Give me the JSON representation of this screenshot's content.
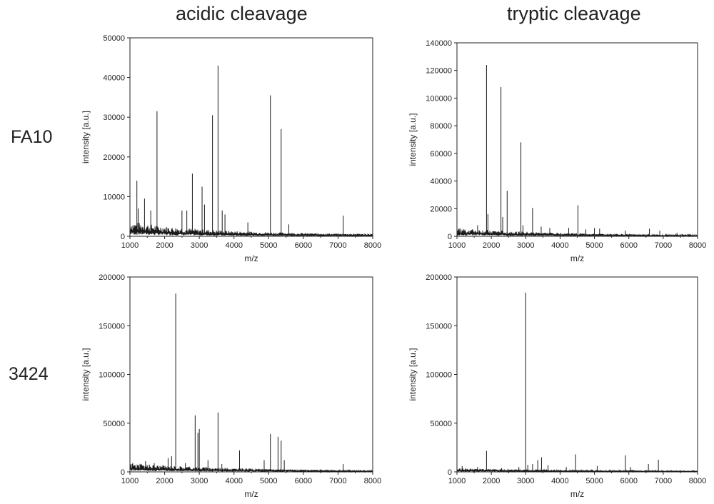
{
  "column_titles": [
    "acidic cleavage",
    "tryptic cleavage"
  ],
  "row_labels": [
    "FA10",
    "3424"
  ],
  "chart_data": [
    {
      "type": "line",
      "id": "fa10-acidic",
      "xlabel": "m/z",
      "ylabel": "intensity [a.u.]",
      "xlim": [
        1000,
        8000
      ],
      "ylim": [
        0,
        50000
      ],
      "xticks": [
        1000,
        2000,
        3000,
        4000,
        5000,
        6000,
        7000,
        8000
      ],
      "yticks": [
        0,
        10000,
        20000,
        30000,
        40000,
        50000
      ],
      "baseline": [
        [
          1000,
          2500
        ],
        [
          2000,
          1700
        ],
        [
          3000,
          1200
        ],
        [
          4000,
          900
        ],
        [
          5000,
          700
        ],
        [
          6000,
          550
        ],
        [
          7000,
          450
        ],
        [
          8000,
          400
        ]
      ],
      "peaks": [
        [
          1200,
          14000
        ],
        [
          1240,
          7000
        ],
        [
          1420,
          9500
        ],
        [
          1600,
          6500
        ],
        [
          1780,
          31500
        ],
        [
          2500,
          6500
        ],
        [
          2640,
          6500
        ],
        [
          2800,
          15800
        ],
        [
          3080,
          12500
        ],
        [
          3150,
          8000
        ],
        [
          3380,
          30500
        ],
        [
          3540,
          43000
        ],
        [
          3660,
          6500
        ],
        [
          3740,
          5500
        ],
        [
          4400,
          3500
        ],
        [
          5050,
          35500
        ],
        [
          5360,
          27000
        ],
        [
          5580,
          3000
        ],
        [
          7150,
          5200
        ]
      ]
    },
    {
      "type": "line",
      "id": "fa10-tryptic",
      "xlabel": "m/z",
      "ylabel": "intensity [a.u.]",
      "xlim": [
        1000,
        8000
      ],
      "ylim": [
        0,
        140000
      ],
      "xticks": [
        1000,
        2000,
        3000,
        4000,
        5000,
        6000,
        7000,
        8000
      ],
      "yticks": [
        0,
        20000,
        40000,
        60000,
        80000,
        100000,
        120000,
        140000
      ],
      "baseline": [
        [
          1000,
          4000
        ],
        [
          2000,
          3000
        ],
        [
          3000,
          2200
        ],
        [
          4000,
          1700
        ],
        [
          5000,
          1300
        ],
        [
          6000,
          1000
        ],
        [
          7000,
          800
        ],
        [
          8000,
          700
        ]
      ],
      "peaks": [
        [
          1600,
          8000
        ],
        [
          1860,
          124000
        ],
        [
          1900,
          16000
        ],
        [
          2280,
          108000
        ],
        [
          2330,
          14000
        ],
        [
          2460,
          33000
        ],
        [
          2860,
          68000
        ],
        [
          2920,
          8000
        ],
        [
          3200,
          20500
        ],
        [
          3450,
          7000
        ],
        [
          3700,
          6000
        ],
        [
          4250,
          6000
        ],
        [
          4520,
          22500
        ],
        [
          4750,
          5000
        ],
        [
          5000,
          6000
        ],
        [
          5150,
          5500
        ],
        [
          5900,
          4000
        ],
        [
          6600,
          5500
        ],
        [
          6900,
          4000
        ],
        [
          7400,
          2500
        ]
      ]
    },
    {
      "type": "line",
      "id": "3424-acidic",
      "xlabel": "m/z",
      "ylabel": "intensity [a.u.]",
      "xlim": [
        1000,
        8000
      ],
      "ylim": [
        0,
        200000
      ],
      "xticks": [
        1000,
        2000,
        3000,
        4000,
        5000,
        6000,
        7000,
        8000
      ],
      "yticks": [
        0,
        50000,
        100000,
        150000,
        200000
      ],
      "baseline": [
        [
          1000,
          6000
        ],
        [
          2000,
          4500
        ],
        [
          3000,
          3500
        ],
        [
          4000,
          2500
        ],
        [
          5000,
          2000
        ],
        [
          6000,
          1500
        ],
        [
          7000,
          1200
        ],
        [
          8000,
          1000
        ]
      ],
      "peaks": [
        [
          1080,
          9000
        ],
        [
          1450,
          11000
        ],
        [
          1700,
          9000
        ],
        [
          2100,
          14000
        ],
        [
          2200,
          16000
        ],
        [
          2320,
          183000
        ],
        [
          2600,
          9000
        ],
        [
          2880,
          58000
        ],
        [
          2960,
          40000
        ],
        [
          3000,
          44000
        ],
        [
          3250,
          12000
        ],
        [
          3540,
          61000
        ],
        [
          3650,
          8000
        ],
        [
          4160,
          22000
        ],
        [
          4870,
          12000
        ],
        [
          5050,
          39000
        ],
        [
          5270,
          36000
        ],
        [
          5360,
          32000
        ],
        [
          5450,
          12000
        ],
        [
          7150,
          8000
        ]
      ]
    },
    {
      "type": "line",
      "id": "3424-tryptic",
      "xlabel": "m/z",
      "ylabel": "intensity [a.u.]",
      "xlim": [
        1000,
        8000
      ],
      "ylim": [
        0,
        200000
      ],
      "xticks": [
        1000,
        2000,
        3000,
        4000,
        5000,
        6000,
        7000,
        8000
      ],
      "yticks": [
        0,
        50000,
        100000,
        150000,
        200000
      ],
      "baseline": [
        [
          1000,
          2500
        ],
        [
          2000,
          2000
        ],
        [
          3000,
          1600
        ],
        [
          4000,
          1300
        ],
        [
          5000,
          1100
        ],
        [
          6000,
          900
        ],
        [
          7000,
          800
        ],
        [
          8000,
          700
        ]
      ],
      "peaks": [
        [
          1150,
          6000
        ],
        [
          1600,
          5000
        ],
        [
          1860,
          21500
        ],
        [
          2300,
          4000
        ],
        [
          2800,
          5000
        ],
        [
          3000,
          184000
        ],
        [
          3060,
          7000
        ],
        [
          3200,
          8000
        ],
        [
          3350,
          12000
        ],
        [
          3460,
          15000
        ],
        [
          3650,
          7000
        ],
        [
          4180,
          5000
        ],
        [
          4450,
          18000
        ],
        [
          5080,
          6000
        ],
        [
          5900,
          17000
        ],
        [
          6050,
          5000
        ],
        [
          6570,
          8000
        ],
        [
          6860,
          12500
        ]
      ]
    }
  ]
}
